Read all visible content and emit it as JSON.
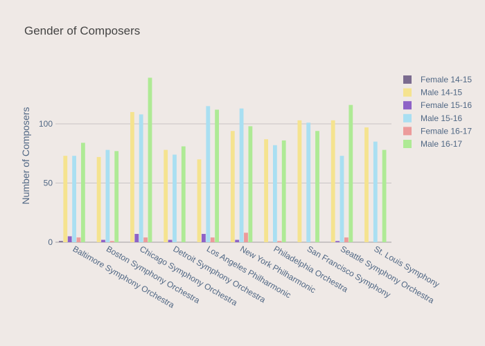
{
  "chart_data": {
    "type": "bar",
    "title": "Gender of Composers",
    "xlabel": "",
    "ylabel": "Number of Composers",
    "ylim": [
      0,
      145
    ],
    "yticks": [
      0,
      50,
      100
    ],
    "grid": true,
    "legend_position": "right",
    "categories": [
      "Baltimore Symphony Orchestra",
      "Boston Symphony Orchestra",
      "Chicago Symphony Orchestra",
      "Detroit Symphony Orchestra",
      "Los Angeles Philharmonic",
      "New York Philharmonic",
      "Philadelphia Orchestra",
      "San Francisco Symphony",
      "Seattle Symphony Orchestra",
      "St. Louis Symphony"
    ],
    "series": [
      {
        "name": "Female 14-15",
        "color": "#7b6b8f",
        "values": [
          1,
          0,
          0,
          0,
          0,
          0,
          0,
          0,
          0,
          0
        ]
      },
      {
        "name": "Male 14-15",
        "color": "#f5e38f",
        "values": [
          73,
          72,
          110,
          78,
          70,
          94,
          87,
          103,
          103,
          97
        ]
      },
      {
        "name": "Female 15-16",
        "color": "#8e62c7",
        "values": [
          5,
          2,
          7,
          2,
          7,
          2,
          0,
          0,
          1,
          0
        ]
      },
      {
        "name": "Male 15-16",
        "color": "#a9dff2",
        "values": [
          73,
          78,
          108,
          74,
          115,
          113,
          82,
          101,
          73,
          85
        ]
      },
      {
        "name": "Female 16-17",
        "color": "#ec9b9b",
        "values": [
          4,
          1,
          4,
          0,
          4,
          8,
          1,
          0,
          4,
          0
        ]
      },
      {
        "name": "Male 16-17",
        "color": "#aeea95",
        "values": [
          84,
          77,
          139,
          81,
          112,
          98,
          86,
          94,
          116,
          78
        ]
      }
    ]
  }
}
